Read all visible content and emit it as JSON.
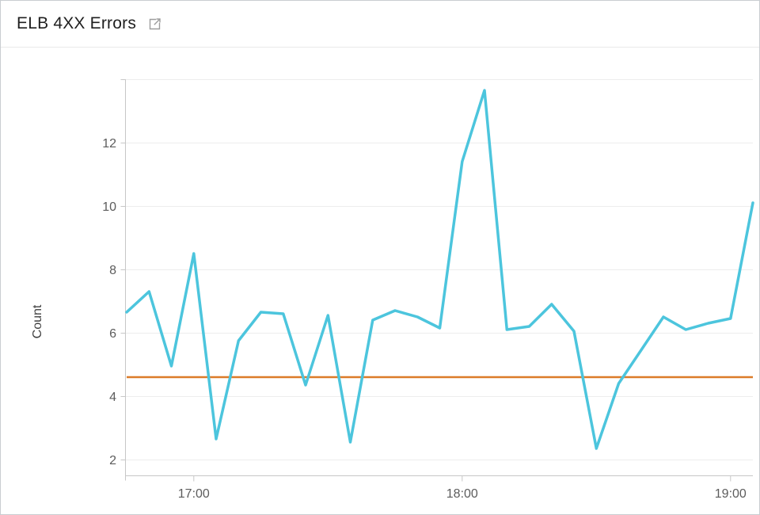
{
  "panel": {
    "title": "ELB 4XX Errors",
    "icons": {
      "external_link": "open-in-new-window"
    }
  },
  "chart_data": {
    "type": "line",
    "title": "ELB 4XX Errors",
    "xlabel": "",
    "ylabel": "Count",
    "ylim": [
      1.5,
      14
    ],
    "grid": "horizontal",
    "legend": "none",
    "y_tick_labels": [
      "2",
      "4",
      "6",
      "8",
      "10",
      "12"
    ],
    "x_tick_labels": [
      "17:00",
      "18:00",
      "19:00"
    ],
    "x": [
      "16:45",
      "16:50",
      "16:55",
      "17:00",
      "17:05",
      "17:10",
      "17:15",
      "17:20",
      "17:25",
      "17:30",
      "17:35",
      "17:40",
      "17:45",
      "17:50",
      "17:55",
      "18:00",
      "18:05",
      "18:10",
      "18:15",
      "18:20",
      "18:25",
      "18:30",
      "18:35",
      "18:40",
      "18:45",
      "18:50",
      "18:55",
      "19:00",
      "19:05"
    ],
    "series": [
      {
        "color": "#4cc5dd",
        "values": [
          6.65,
          7.3,
          4.95,
          8.5,
          2.65,
          5.75,
          6.65,
          6.6,
          4.35,
          6.55,
          2.55,
          6.4,
          6.7,
          6.5,
          6.15,
          11.4,
          13.65,
          6.1,
          6.2,
          6.9,
          6.05,
          2.35,
          4.4,
          5.45,
          6.5,
          6.1,
          6.3,
          6.45,
          10.1
        ]
      }
    ],
    "reference_line": {
      "color": "#dc7b29",
      "value": 4.6
    },
    "colors": {
      "line": "#4cc5dd",
      "reference": "#dc7b29",
      "axis": "#c7c7c7",
      "grid": "#ededed",
      "tick_text": "#5c5c5c"
    }
  }
}
